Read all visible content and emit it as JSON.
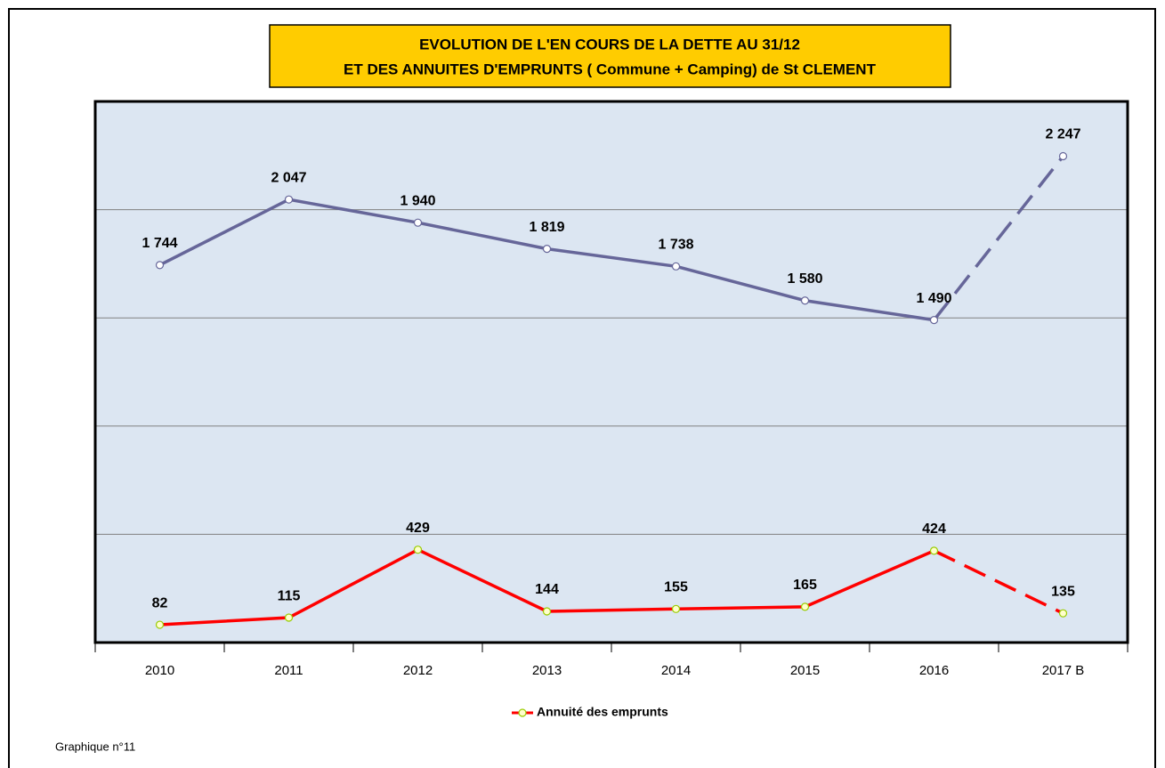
{
  "chart_data": {
    "type": "line",
    "title": [
      "EVOLUTION DE L'EN COURS DE LA DETTE AU 31/12",
      "ET DES ANNUITES D'EMPRUNTS  ( Commune + Camping) de St CLEMENT"
    ],
    "categories": [
      "2010",
      "2011",
      "2012",
      "2013",
      "2014",
      "2015",
      "2016",
      "2017 B"
    ],
    "series": [
      {
        "name": null,
        "color": "#666699",
        "marker_color": "#ffffff",
        "values": [
          1744,
          2047,
          1940,
          1819,
          1738,
          1580,
          1490,
          2247
        ],
        "value_labels": [
          "1 744",
          "2 047",
          "1 940",
          "1 819",
          "1 738",
          "1 580",
          "1 490",
          "2 247"
        ]
      },
      {
        "name": "Annuité des emprunts",
        "color": "#ff0000",
        "marker_color": "#ffffcc",
        "values": [
          82,
          115,
          429,
          144,
          155,
          165,
          424,
          135
        ]
      }
    ],
    "dashed_last_segment": true,
    "ylim": [
      0,
      2500
    ],
    "yticks": [
      0,
      500,
      1000,
      1500,
      2000,
      2500
    ],
    "grid": true,
    "plot_background": "#dce6f2",
    "title_background": "#ffcc00",
    "footnote": "Graphique n°11"
  }
}
